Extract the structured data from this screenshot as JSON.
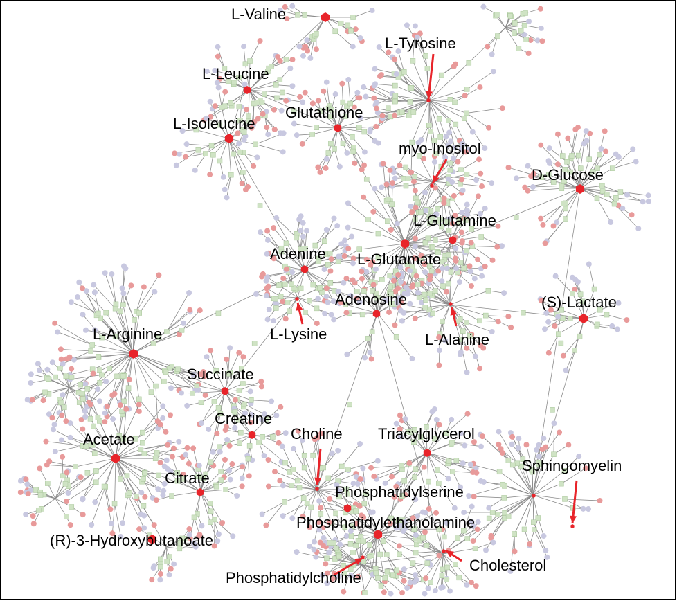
{
  "labels": {
    "l_valine": "L-Valine",
    "l_tyrosine": "L-Tyrosine",
    "l_leucine": "L-Leucine",
    "glutathione": "Glutathione",
    "l_isoleucine": "L-Isoleucine",
    "myo_inositol": "myo-Inositol",
    "d_glucose": "D-Glucose",
    "l_glutamine": "L-Glutamine",
    "adenine": "Adenine",
    "l_glutamate": "L-Glutamate",
    "adenosine": "Adenosine",
    "s_lactate": "(S)-Lactate",
    "l_arginine": "L-Arginine",
    "l_lysine": "L-Lysine",
    "l_alanine": "L-Alanine",
    "succinate": "Succinate",
    "creatine": "Creatine",
    "choline": "Choline",
    "triacylglycerol": "Triacylglycerol",
    "acetate": "Acetate",
    "sphingomyelin": "Sphingomyelin",
    "citrate": "Citrate",
    "phosphatidylserine": "Phosphatidylserine",
    "phosphatidylethanolamine": "Phosphatidylethanolamine",
    "r3_hydroxybutanoate": "(R)-3-Hydroxybutanoate",
    "cholesterol": "Cholesterol",
    "phosphatidylcholine": "Phosphatidylcholine"
  },
  "colors": {
    "highlight_metabolite": "#e8242a",
    "metabolite": "#e89a9a",
    "reaction": "#cfe3c4",
    "gene": "#c8c8e0",
    "edge": "#8a8a8a",
    "arrow": "#e8242a"
  }
}
